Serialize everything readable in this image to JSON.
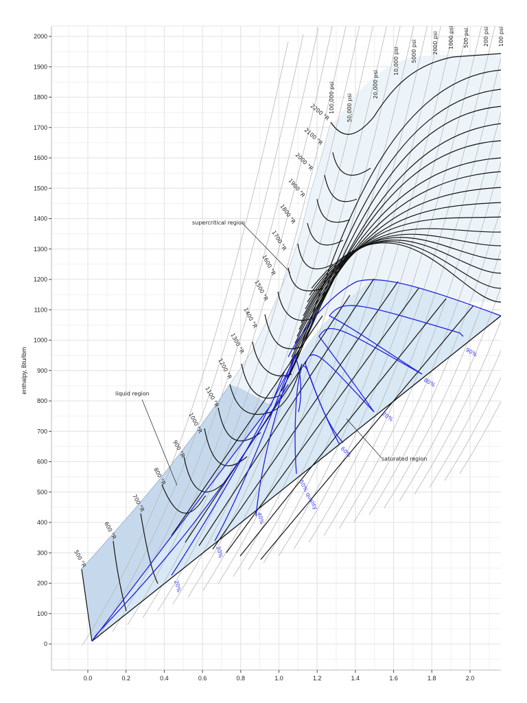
{
  "chart_data": {
    "type": "line",
    "title": "",
    "xlabel": "",
    "ylabel": "enthalpy, Btu/lbm",
    "xlim": [
      -0.2,
      2.15
    ],
    "ylim": [
      -150,
      2050
    ],
    "grid": true,
    "legend": "none",
    "x_ticks": [
      "0.0",
      "0.2",
      "0.4",
      "0.6",
      "0.8",
      "1.0",
      "1.2",
      "1.4",
      "1.6",
      "1.8",
      "2.0"
    ],
    "y_ticks": [
      "0",
      "100",
      "200",
      "300",
      "400",
      "500",
      "600",
      "700",
      "800",
      "900",
      "1000",
      "1100",
      "1200",
      "1300",
      "1400",
      "1500",
      "1600",
      "1700",
      "1800",
      "1900",
      "2000"
    ],
    "regions": [
      {
        "name": "liquid region",
        "fill": "#c6d9ec"
      },
      {
        "name": "supercritical region",
        "fill": "#ebf3f9"
      },
      {
        "name": "saturated region",
        "fill": "#d8e8f4"
      }
    ],
    "isotherm_labels": [
      "500 °R",
      "600 °R",
      "700 °R",
      "800 °R",
      "900 °R",
      "1000 °R",
      "1100 °R",
      "1200 °R",
      "1300 °R",
      "1400 °R",
      "1500 °R",
      "1600 °R",
      "1700 °R",
      "1800 °R",
      "1900 °R",
      "2000 °R",
      "2100 °R",
      "2200 °R"
    ],
    "isobar_labels": [
      "100,000 psi",
      "50,000 psi",
      "20,000 psi",
      "10,000 psi",
      "5000 psi",
      "2000 psi",
      "1000 psi",
      "500 psi",
      "200 psi",
      "100 psi"
    ],
    "quality_labels": [
      "20%",
      "30%",
      "40%",
      "50% quality",
      "60%",
      "70%",
      "80%",
      "90%"
    ],
    "isotherms": [
      {
        "label": "500 °R",
        "points": [
          [
            -0.03,
            248
          ],
          [
            0.02,
            10
          ]
        ]
      },
      {
        "label": "600 °R",
        "points": [
          [
            0.13,
            338
          ],
          [
            0.16,
            180
          ],
          [
            0.2,
            110
          ]
        ]
      },
      {
        "label": "700 °R",
        "points": [
          [
            0.27,
            428
          ],
          [
            0.3,
            320
          ],
          [
            0.36,
            210
          ]
        ]
      },
      {
        "label": "800 °R",
        "points": [
          [
            0.4,
            525
          ],
          [
            0.44,
            400
          ],
          [
            0.5,
            300
          ]
        ]
      },
      {
        "label": "900 °R",
        "points": [
          [
            0.52,
            630
          ],
          [
            0.57,
            460
          ],
          [
            0.62,
            395
          ]
        ]
      },
      {
        "label": "1000 °R",
        "points": [
          [
            0.63,
            730
          ],
          [
            0.68,
            560
          ],
          [
            0.75,
            520
          ]
        ]
      },
      {
        "label": "1100 °R",
        "points": [
          [
            0.73,
            840
          ],
          [
            0.8,
            680
          ],
          [
            0.86,
            640
          ]
        ]
      },
      {
        "label": "1200 °R",
        "points": [
          [
            0.74,
            860
          ],
          [
            0.8,
            770
          ],
          [
            0.93,
            780
          ]
        ]
      },
      {
        "label": "1300 °R",
        "points": [
          [
            0.84,
            990
          ],
          [
            0.9,
            880
          ],
          [
            1.0,
            900
          ]
        ]
      },
      {
        "label": "1400 °R",
        "points": [
          [
            0.93,
            1110
          ],
          [
            1.0,
            1000
          ],
          [
            1.08,
            1020
          ]
        ]
      },
      {
        "label": "1500 °R",
        "points": [
          [
            0.98,
            1220
          ],
          [
            1.05,
            1120
          ],
          [
            1.14,
            1140
          ]
        ]
      },
      {
        "label": "1600 °R",
        "points": [
          [
            1.02,
            1330
          ],
          [
            1.1,
            1230
          ],
          [
            1.2,
            1260
          ]
        ]
      },
      {
        "label": "1700 °R",
        "points": [
          [
            1.06,
            1440
          ],
          [
            1.14,
            1340
          ],
          [
            1.26,
            1370
          ]
        ]
      },
      {
        "label": "1800 °R",
        "points": [
          [
            1.1,
            1530
          ],
          [
            1.18,
            1440
          ],
          [
            1.3,
            1480
          ]
        ]
      },
      {
        "label": "1900 °R",
        "points": [
          [
            1.14,
            1630
          ],
          [
            1.22,
            1530
          ],
          [
            1.34,
            1580
          ]
        ]
      },
      {
        "label": "2000 °R",
        "points": [
          [
            1.18,
            1720
          ],
          [
            1.26,
            1620
          ],
          [
            1.38,
            1680
          ]
        ]
      },
      {
        "label": "2100 °R",
        "points": [
          [
            1.21,
            1800
          ],
          [
            1.28,
            1710
          ],
          [
            1.42,
            1780
          ]
        ]
      },
      {
        "label": "2200 °R",
        "points": [
          [
            1.26,
            1720
          ],
          [
            1.33,
            1700
          ],
          [
            1.55,
            1900
          ],
          [
            2.15,
            1945
          ]
        ]
      }
    ],
    "saturation_dome": {
      "apex_x": 1.47,
      "apex_y": 1205,
      "right_end": [
        2.15,
        1080
      ]
    },
    "saturated_bottom_line": {
      "points": [
        [
          0.02,
          10
        ],
        [
          2.15,
          1080
        ]
      ]
    }
  }
}
